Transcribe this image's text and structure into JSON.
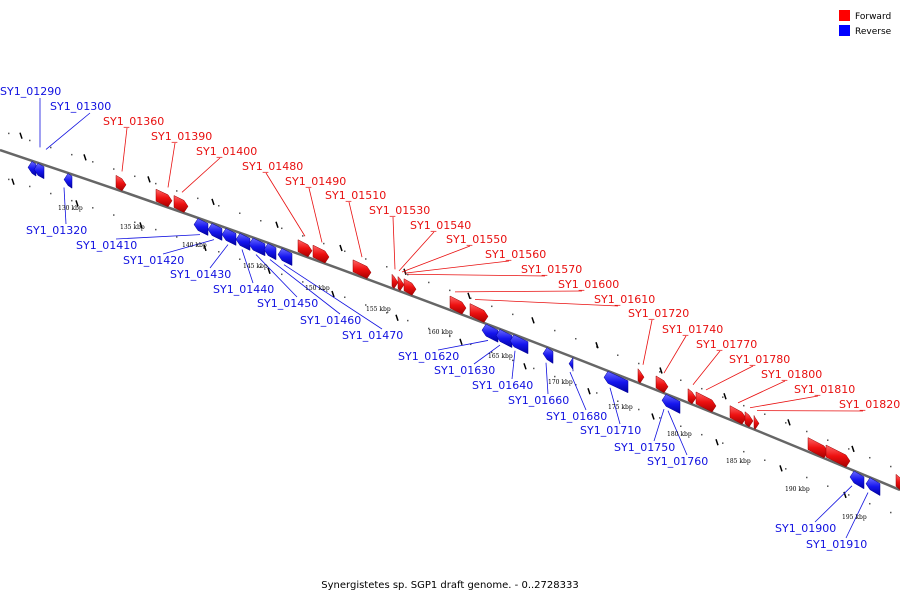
{
  "caption": "Synergistetes sp. SGP1 draft genome. - 0..2728333",
  "legend": {
    "forward": {
      "label": "Forward",
      "color": "#ff0000"
    },
    "reverse": {
      "label": "Reverse",
      "color": "#0000ff"
    }
  },
  "colors": {
    "forward": "#e81010",
    "reverse": "#1010e0",
    "backbone": "#666666"
  },
  "scale_labels": [
    "130 kbp",
    "135 kbp",
    "140 kbp",
    "145 kbp",
    "150 kbp",
    "155 kbp",
    "160 kbp",
    "165 kbp",
    "170 kbp",
    "175 kbp",
    "180 kbp",
    "185 kbp",
    "190 kbp",
    "195 kbp"
  ],
  "forward_labels": [
    "SY1_01360",
    "SY1_01390",
    "SY1_01400",
    "SY1_01480",
    "SY1_01490",
    "SY1_01510",
    "SY1_01530",
    "SY1_01540",
    "SY1_01550",
    "SY1_01560",
    "SY1_01570",
    "SY1_01600",
    "SY1_01610",
    "SY1_01720",
    "SY1_01740",
    "SY1_01770",
    "SY1_01780",
    "SY1_01800",
    "SY1_01810",
    "SY1_01820"
  ],
  "reverse_labels": [
    "SY1_01290",
    "SY1_01300",
    "SY1_01320",
    "SY1_01410",
    "SY1_01420",
    "SY1_01430",
    "SY1_01440",
    "SY1_01450",
    "SY1_01460",
    "SY1_01470",
    "SY1_01620",
    "SY1_01630",
    "SY1_01640",
    "SY1_01660",
    "SY1_01680",
    "SY1_01710",
    "SY1_01750",
    "SY1_01760",
    "SY1_01900",
    "SY1_01910"
  ]
}
